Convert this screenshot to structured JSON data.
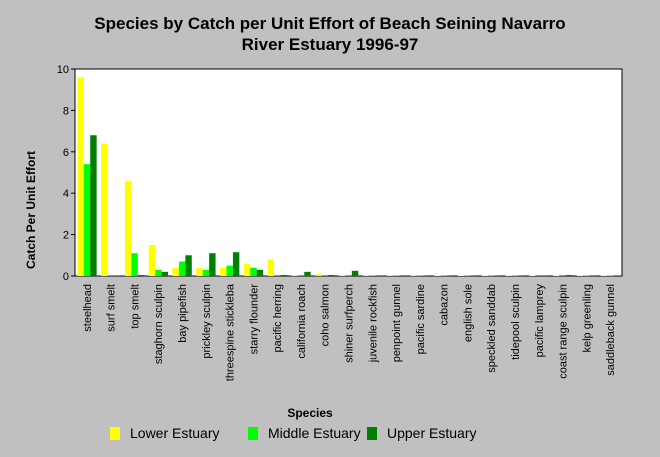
{
  "chart_data": {
    "type": "bar",
    "title_lines": [
      "Species by Catch per Unit Effort of Beach Seining Navarro",
      "River Estuary 1996-97"
    ],
    "xlabel": "Species",
    "ylabel": "Catch Per Unit Effort",
    "ylim": [
      0,
      10
    ],
    "yticks": [
      "0",
      "2",
      "4",
      "6",
      "8",
      "10"
    ],
    "categories": [
      "steelhead",
      "surf smelt",
      "top smelt",
      "staghorn sculpin",
      "bay pipefish",
      "prickley sculpin",
      "threespine stickleba",
      "starry flounder",
      "pacific herring",
      "california roach",
      "coho salmon",
      "shiner surfperch",
      "juvenile rockfish",
      "penpoint gunnel",
      "pacific sardine",
      "cabazon",
      "english sole",
      "speckled sanddab",
      "tidepool sculpin",
      "pacific lamprey",
      "coast range sculpin",
      "kelp greenling",
      "saddleback gunnel"
    ],
    "series": [
      {
        "name": "Lower Estuary",
        "color": "#ffff00",
        "values": [
          9.6,
          6.4,
          4.6,
          1.5,
          0.4,
          0.4,
          0.4,
          0.6,
          0.8,
          0.05,
          0.1,
          0.05,
          0.05,
          0.05,
          0.05,
          0.03,
          0.03,
          0.03,
          0.03,
          0.03,
          0.03,
          0.03,
          0.03
        ]
      },
      {
        "name": "Middle Estuary",
        "color": "#00ff00",
        "values": [
          5.4,
          0.05,
          1.1,
          0.3,
          0.7,
          0.3,
          0.5,
          0.4,
          0.05,
          0.05,
          0.05,
          0.05,
          0.03,
          0.03,
          0.03,
          0.03,
          0.03,
          0.03,
          0.03,
          0.05,
          0.05,
          0.03,
          0.03
        ]
      },
      {
        "name": "Upper Estuary",
        "color": "#008000",
        "values": [
          6.8,
          0.03,
          0.05,
          0.2,
          1.0,
          1.1,
          1.15,
          0.3,
          0.05,
          0.2,
          0.05,
          0.25,
          0.03,
          0.03,
          0.03,
          0.03,
          0.03,
          0.03,
          0.03,
          0.03,
          0.05,
          0.03,
          0.03
        ]
      }
    ],
    "grid": false,
    "legend_position": "bottom"
  }
}
